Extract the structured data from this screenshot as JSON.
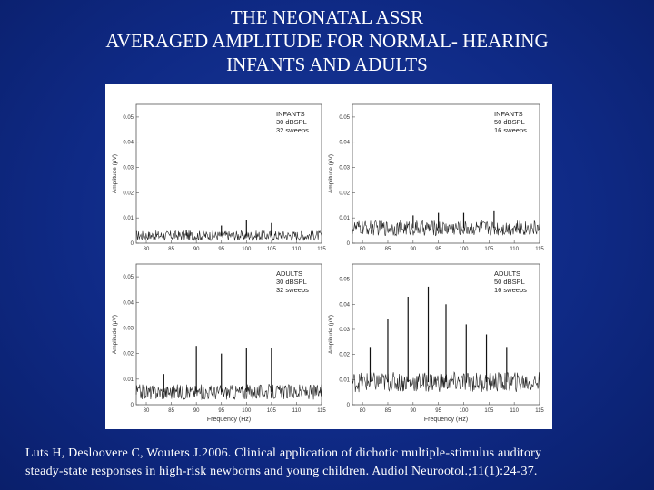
{
  "slide": {
    "title_lines": [
      "THE NEONATAL ASSR",
      "AVERAGED AMPLITUDE FOR NORMAL- HEARING",
      "INFANTS AND ADULTS"
    ],
    "citation_lines": [
      "Luts H, Desloovere C, Wouters J.2006. Clinical application of dichotic multiple-stimulus auditory",
      "steady-state responses in high-risk newborns and young children. Audiol Neurootol.;11(1):24-37."
    ],
    "background_color": "#0f2a86",
    "text_color": "#ffffff"
  },
  "chart_data": [
    {
      "type": "line",
      "panel": "top-left",
      "legend_lines": [
        "INFANTS",
        "30 dBSPL",
        "32 sweeps"
      ],
      "ylabel": "Amplitude (μV)",
      "xlabel": "",
      "x_ticks": [
        "80",
        "85",
        "90",
        "95",
        "100",
        "105",
        "110",
        "115"
      ],
      "y_ticks": [
        "0",
        "0.01",
        "0.02",
        "0.03",
        "0.04",
        "0.05"
      ],
      "xlim": [
        78,
        115
      ],
      "ylim": [
        0,
        0.055
      ],
      "noise_floor": 0.003,
      "noise_amp": 0.002,
      "peaks": [
        {
          "x": 88.0,
          "y": 0.005
        },
        {
          "x": 95.0,
          "y": 0.007
        },
        {
          "x": 100.0,
          "y": 0.009
        },
        {
          "x": 105.0,
          "y": 0.008
        }
      ]
    },
    {
      "type": "line",
      "panel": "top-right",
      "legend_lines": [
        "INFANTS",
        "50 dBSPL",
        "16 sweeps"
      ],
      "ylabel": "Amplitude (μV)",
      "xlabel": "",
      "x_ticks": [
        "80",
        "85",
        "90",
        "95",
        "100",
        "105",
        "110",
        "115"
      ],
      "y_ticks": [
        "0",
        "0.01",
        "0.02",
        "0.03",
        "0.04",
        "0.05"
      ],
      "xlim": [
        78,
        115
      ],
      "ylim": [
        0,
        0.055
      ],
      "noise_floor": 0.006,
      "noise_amp": 0.003,
      "peaks": [
        {
          "x": 90.0,
          "y": 0.011
        },
        {
          "x": 95.0,
          "y": 0.012
        },
        {
          "x": 100.0,
          "y": 0.012
        },
        {
          "x": 103.5,
          "y": 0.009
        },
        {
          "x": 106.0,
          "y": 0.013
        }
      ]
    },
    {
      "type": "line",
      "panel": "bottom-left",
      "legend_lines": [
        "ADULTS",
        "30 dBSPL",
        "32 sweeps"
      ],
      "ylabel": "Amplitude (μV)",
      "xlabel": "Frequency (Hz)",
      "x_ticks": [
        "80",
        "85",
        "90",
        "95",
        "100",
        "105",
        "110",
        "115"
      ],
      "y_ticks": [
        "0",
        "0.01",
        "0.02",
        "0.03",
        "0.04",
        "0.05"
      ],
      "xlim": [
        78,
        115
      ],
      "ylim": [
        0,
        0.055
      ],
      "noise_floor": 0.005,
      "noise_amp": 0.003,
      "peaks": [
        {
          "x": 90.0,
          "y": 0.023
        },
        {
          "x": 95.0,
          "y": 0.02
        },
        {
          "x": 100.0,
          "y": 0.022
        },
        {
          "x": 105.0,
          "y": 0.022
        },
        {
          "x": 83.5,
          "y": 0.012
        }
      ]
    },
    {
      "type": "line",
      "panel": "bottom-right",
      "legend_lines": [
        "ADULTS",
        "50 dBSPL",
        "16 sweeps"
      ],
      "ylabel": "Amplitude (μV)",
      "xlabel": "Frequency (Hz)",
      "x_ticks": [
        "80",
        "85",
        "90",
        "95",
        "100",
        "105",
        "110",
        "115"
      ],
      "y_ticks": [
        "0",
        "0.01",
        "0.02",
        "0.03",
        "0.04",
        "0.05"
      ],
      "xlim": [
        78,
        115
      ],
      "ylim": [
        0,
        0.056
      ],
      "noise_floor": 0.009,
      "noise_amp": 0.004,
      "peaks": [
        {
          "x": 81.5,
          "y": 0.023
        },
        {
          "x": 85.0,
          "y": 0.034
        },
        {
          "x": 89.0,
          "y": 0.043
        },
        {
          "x": 93.0,
          "y": 0.047
        },
        {
          "x": 96.5,
          "y": 0.04
        },
        {
          "x": 100.5,
          "y": 0.032
        },
        {
          "x": 104.5,
          "y": 0.028
        },
        {
          "x": 108.5,
          "y": 0.023
        }
      ]
    }
  ]
}
